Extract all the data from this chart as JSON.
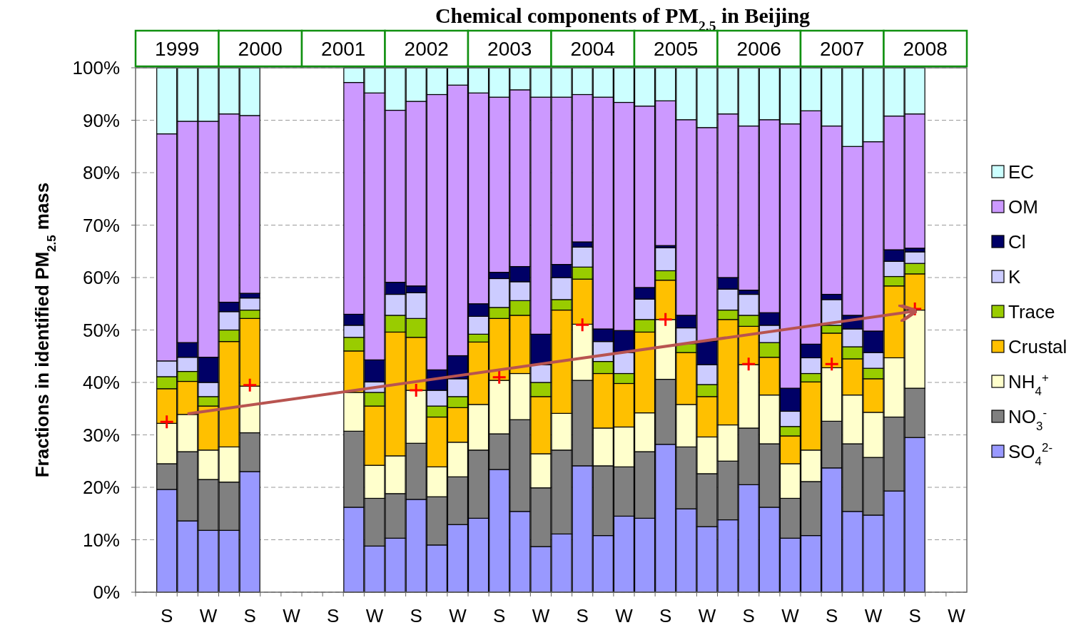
{
  "chart_data": {
    "type": "bar",
    "stacked": true,
    "title": "Chemical components of PM$_{2.5}$ in Beijing",
    "ylabel": "Fractions in identified PM$_{2.5}$ mass",
    "categories": [
      null,
      "S",
      null,
      "W",
      null,
      "S",
      null,
      "W",
      null,
      "S",
      null,
      "W",
      null,
      "S",
      null,
      "W",
      null,
      "S",
      null,
      "W",
      null,
      "S",
      null,
      "W",
      null,
      "S",
      null,
      "W",
      null,
      "S",
      null,
      "W",
      null,
      "S",
      null,
      "W",
      null,
      "S",
      null,
      "W"
    ],
    "ylim": [
      0,
      100
    ],
    "yticks": [
      {
        "value": 0,
        "label": "0%"
      },
      {
        "value": 10,
        "label": "10%"
      },
      {
        "value": 20,
        "label": "20%"
      },
      {
        "value": 30,
        "label": "30%"
      },
      {
        "value": 40,
        "label": "40%"
      },
      {
        "value": 50,
        "label": "50%"
      },
      {
        "value": 60,
        "label": "60%"
      },
      {
        "value": 70,
        "label": "70%"
      },
      {
        "value": 80,
        "label": "80%"
      },
      {
        "value": 90,
        "label": "90%"
      },
      {
        "value": 100,
        "label": "100%"
      }
    ],
    "grid": "y",
    "legend": "right",
    "annotations": [
      "1999",
      "2000",
      "2001",
      "2002",
      "2003",
      "2004",
      "2005",
      "2006",
      "2007",
      "2008"
    ],
    "series": [
      {
        "name": "SO$_{4}$$^{2-}$",
        "color": "#9999ff",
        "values": [
          null,
          19.6,
          13.6,
          11.8,
          11.8,
          23.0,
          null,
          null,
          null,
          null,
          16.2,
          8.8,
          10.3,
          17.7,
          9.0,
          12.9,
          14.1,
          23.4,
          15.4,
          8.7,
          11.1,
          24.1,
          10.8,
          14.5,
          14.1,
          28.2,
          15.9,
          12.5,
          13.8,
          20.5,
          16.2,
          10.3,
          10.8,
          23.7,
          15.4,
          14.7,
          19.3,
          29.5,
          null,
          null
        ]
      },
      {
        "name": "NO$_{3}$$^{-}$",
        "color": "#808080",
        "values": [
          null,
          4.9,
          13.2,
          9.7,
          9.2,
          7.4,
          null,
          null,
          null,
          null,
          14.5,
          9.1,
          8.5,
          10.7,
          9.2,
          9.1,
          13.0,
          6.8,
          17.5,
          11.2,
          16.0,
          16.3,
          13.3,
          9.4,
          12.7,
          12.4,
          11.8,
          10.1,
          11.2,
          10.8,
          12.1,
          7.6,
          10.3,
          8.9,
          12.9,
          11.0,
          14.1,
          9.4,
          null,
          null
        ]
      },
      {
        "name": "NH$_{4}$$^{+}$",
        "color": "#ffffcc",
        "values": [
          null,
          7.7,
          7.1,
          5.6,
          6.7,
          8.9,
          null,
          null,
          null,
          null,
          7.4,
          6.3,
          7.2,
          10.1,
          5.7,
          6.6,
          8.7,
          10.2,
          8.8,
          6.5,
          7.0,
          10.7,
          7.2,
          7.6,
          7.4,
          11.4,
          8.1,
          7.0,
          6.9,
          12.1,
          9.3,
          6.6,
          6.0,
          10.2,
          9.3,
          8.6,
          11.3,
          14.9,
          null,
          null
        ]
      },
      {
        "name": "Crustal",
        "color": "#ffc000",
        "values": [
          null,
          6.6,
          6.3,
          8.4,
          20.1,
          12.9,
          null,
          null,
          null,
          null,
          7.9,
          11.3,
          23.6,
          10.1,
          9.5,
          6.6,
          11.9,
          11.8,
          11.1,
          10.9,
          19.7,
          8.6,
          10.4,
          8.3,
          15.4,
          7.5,
          9.9,
          7.7,
          20.1,
          7.3,
          7.2,
          5.3,
          13.0,
          6.6,
          6.9,
          6.4,
          13.7,
          6.9,
          null,
          null
        ]
      },
      {
        "name": "Trace",
        "color": "#99cc00",
        "values": [
          null,
          2.3,
          1.9,
          1.8,
          2.2,
          1.6,
          null,
          null,
          null,
          null,
          2.6,
          2.6,
          3.2,
          3.6,
          2.1,
          2.1,
          1.5,
          2.1,
          2.8,
          2.7,
          2.0,
          2.3,
          2.3,
          1.9,
          2.4,
          1.8,
          1.7,
          2.3,
          1.8,
          2.1,
          2.8,
          1.8,
          1.6,
          1.5,
          2.3,
          2.0,
          1.8,
          2.0,
          null,
          null
        ]
      },
      {
        "name": "K",
        "color": "#ccccff",
        "values": [
          null,
          3.0,
          2.7,
          2.7,
          3.5,
          2.3,
          null,
          null,
          null,
          null,
          2.3,
          2.0,
          4.0,
          4.9,
          3.0,
          3.4,
          3.4,
          5.5,
          3.6,
          3.4,
          4.2,
          3.8,
          3.8,
          4.0,
          3.9,
          4.4,
          3.0,
          3.8,
          4.0,
          4.0,
          3.3,
          2.9,
          3.0,
          4.9,
          3.4,
          3.0,
          2.9,
          2.2,
          null,
          null
        ]
      },
      {
        "name": "Cl",
        "color": "#000066",
        "values": [
          null,
          0,
          2.8,
          4.8,
          1.8,
          0.9,
          null,
          null,
          null,
          null,
          2.1,
          4.2,
          2.3,
          1.3,
          3.9,
          4.4,
          2.4,
          1.2,
          2.9,
          5.8,
          2.5,
          1.0,
          2.4,
          4.2,
          2.2,
          0.4,
          2.4,
          4.5,
          2.2,
          0.8,
          2.4,
          4.4,
          2.6,
          1.0,
          2.6,
          4.1,
          2.2,
          0.7,
          null,
          null
        ]
      },
      {
        "name": "OM",
        "color": "#cc99ff",
        "values": [
          null,
          43.3,
          42.2,
          45.0,
          35.9,
          33.9,
          null,
          null,
          null,
          null,
          44.2,
          50.9,
          32.8,
          35.2,
          52.5,
          51.6,
          40.2,
          33.4,
          33.7,
          45.2,
          31.9,
          28.1,
          44.2,
          43.5,
          34.6,
          27.6,
          37.3,
          40.7,
          31.2,
          31.3,
          36.8,
          50.4,
          44.5,
          32.1,
          32.2,
          36.1,
          25.5,
          25.6,
          null,
          null
        ]
      },
      {
        "name": "EC",
        "color": "#ccffff",
        "values": [
          null,
          12.6,
          10.2,
          10.2,
          8.8,
          9.1,
          null,
          null,
          null,
          null,
          2.8,
          4.8,
          8.1,
          6.4,
          5.1,
          3.3,
          4.8,
          5.6,
          4.2,
          5.6,
          5.6,
          5.1,
          5.6,
          6.6,
          7.3,
          6.3,
          9.9,
          11.4,
          8.8,
          11.1,
          9.9,
          10.7,
          8.2,
          11.1,
          15.0,
          14.1,
          9.2,
          8.8,
          null,
          null
        ]
      },
      {
        "type": "scatter",
        "marker": "cross",
        "color": "#ff0000",
        "values": [
          null,
          32.5,
          null,
          null,
          null,
          39.5,
          null,
          null,
          null,
          null,
          null,
          null,
          null,
          38.5,
          null,
          null,
          null,
          41,
          null,
          null,
          null,
          51,
          null,
          null,
          null,
          52,
          null,
          null,
          null,
          43.5,
          null,
          null,
          null,
          43.5,
          null,
          null,
          null,
          54,
          null,
          null
        ]
      },
      {
        "type": "line",
        "marker": "none",
        "line_style": "solid",
        "color": "#b85450",
        "values": [
          null,
          null,
          34,
          null,
          null,
          null,
          null,
          null,
          null,
          null,
          null,
          null,
          null,
          null,
          null,
          null,
          null,
          null,
          null,
          null,
          null,
          null,
          null,
          null,
          null,
          null,
          null,
          null,
          null,
          null,
          null,
          null,
          null,
          null,
          null,
          null,
          null,
          53.6,
          null,
          null
        ]
      }
    ]
  }
}
